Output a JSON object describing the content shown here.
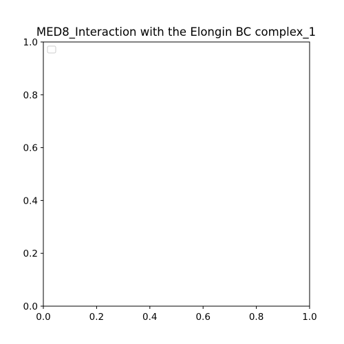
{
  "chart_data": {
    "type": "scatter",
    "title": "MED8_Interaction with the Elongin BC complex_1",
    "xlabel": "",
    "ylabel": "",
    "xlim": [
      0.0,
      1.0
    ],
    "ylim": [
      0.0,
      1.0
    ],
    "x_ticks": [
      "0.0",
      "0.2",
      "0.4",
      "0.6",
      "0.8",
      "1.0"
    ],
    "y_ticks": [
      "0.0",
      "0.2",
      "0.4",
      "0.6",
      "0.8",
      "1.0"
    ],
    "grid": false,
    "legend": {
      "placement": "top-left",
      "entries": []
    },
    "series": []
  }
}
